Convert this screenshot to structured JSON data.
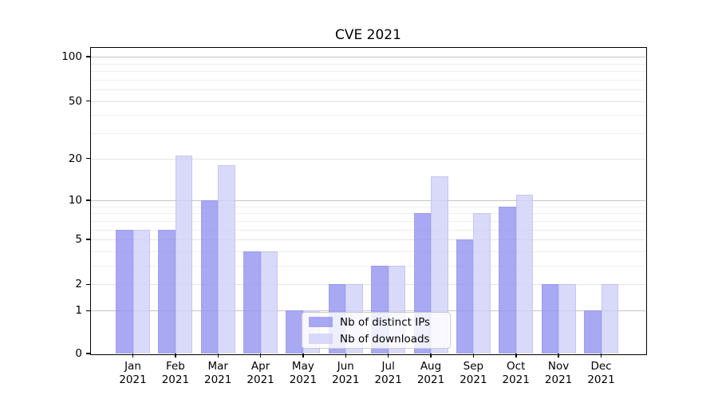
{
  "chart_data": {
    "type": "bar",
    "title": "CVE 2021",
    "categories": [
      "Jan 2021",
      "Feb 2021",
      "Mar 2021",
      "Apr 2021",
      "May 2021",
      "Jun 2021",
      "Jul 2021",
      "Aug 2021",
      "Sep 2021",
      "Oct 2021",
      "Nov 2021",
      "Dec 2021"
    ],
    "series": [
      {
        "name": "Nb of distinct IPs",
        "color": "rgba(146,146,240,0.8)",
        "values": [
          6,
          6,
          10,
          4,
          1,
          2,
          3,
          8,
          5,
          9,
          2,
          1
        ]
      },
      {
        "name": "Nb of downloads",
        "color": "rgba(207,207,247,0.8)",
        "values": [
          6,
          21,
          18,
          4,
          1,
          2,
          3,
          15,
          8,
          11,
          2,
          2
        ]
      }
    ],
    "xlabel": "",
    "ylabel": "",
    "yscale": "log(1+y)",
    "yticks": [
      0,
      1,
      2,
      5,
      10,
      20,
      50,
      100
    ],
    "ylim": [
      0,
      114
    ],
    "grid": true,
    "grid_major": [
      1,
      10,
      100
    ],
    "grid_mid": [
      2,
      5,
      20,
      50
    ],
    "grid_minor": [
      3,
      4,
      6,
      7,
      8,
      9,
      30,
      40,
      60,
      70,
      80,
      90
    ],
    "legend_position": "lower center",
    "bar_colors": {
      "distinct_ips": "#aaaaf0",
      "downloads": "#dadaf8"
    }
  }
}
